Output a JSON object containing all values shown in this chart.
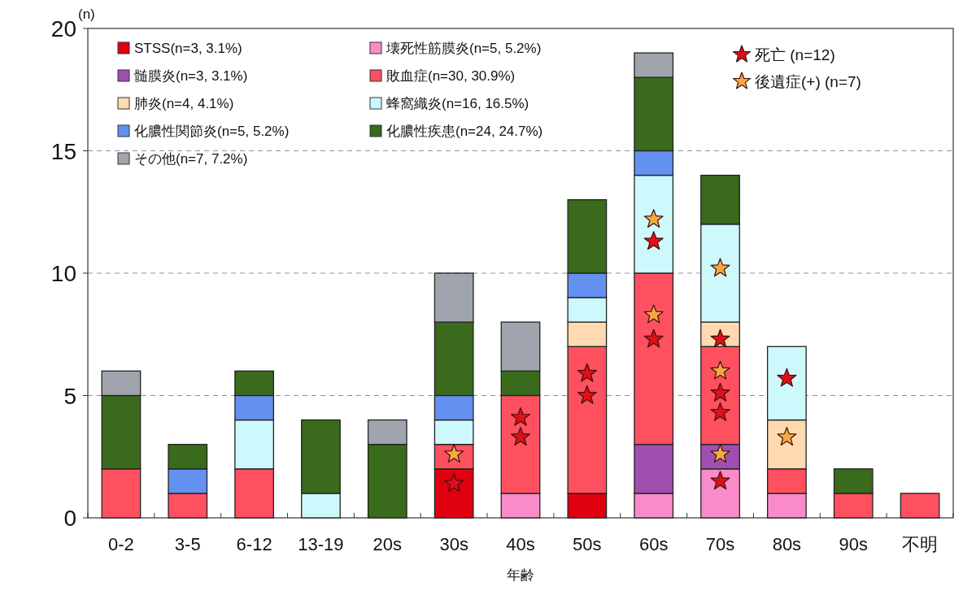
{
  "chart_data": {
    "type": "bar",
    "stacked": true,
    "xlabel": "年齢",
    "ylabel": "(n)",
    "categories": [
      "0-2",
      "3-5",
      "6-12",
      "13-19",
      "20s",
      "30s",
      "40s",
      "50s",
      "60s",
      "70s",
      "80s",
      "90s",
      "不明"
    ],
    "ylim": [
      0,
      20
    ],
    "yticks": [
      0,
      5,
      10,
      15,
      20
    ],
    "grid": "y",
    "legend": "top",
    "series": [
      {
        "name": "STSS(n=3, 3.1%)",
        "color": "#e00010",
        "values": [
          0,
          0,
          0,
          0,
          0,
          2,
          0,
          1,
          0,
          0,
          0,
          0,
          0
        ]
      },
      {
        "name": "壊死性筋膜炎(n=5, 5.2%)",
        "color": "#f98cc8",
        "values": [
          0,
          0,
          0,
          0,
          0,
          0,
          1,
          0,
          1,
          2,
          1,
          0,
          0
        ]
      },
      {
        "name": "髄膜炎(n=3, 3.1%)",
        "color": "#a04fb0",
        "values": [
          0,
          0,
          0,
          0,
          0,
          0,
          0,
          0,
          2,
          1,
          0,
          0,
          0
        ]
      },
      {
        "name": "敗血症(n=30, 30.9%)",
        "color": "#ff5060",
        "values": [
          2,
          1,
          2,
          0,
          0,
          1,
          4,
          6,
          7,
          4,
          1,
          1,
          1
        ]
      },
      {
        "name": "肺炎(n=4, 4.1%)",
        "color": "#ffdab0",
        "values": [
          0,
          0,
          0,
          0,
          0,
          0,
          0,
          1,
          0,
          1,
          2,
          0,
          0
        ]
      },
      {
        "name": "蜂窩織炎(n=16, 16.5%)",
        "color": "#cdf8fc",
        "values": [
          0,
          0,
          2,
          1,
          0,
          1,
          0,
          1,
          4,
          4,
          3,
          0,
          0
        ]
      },
      {
        "name": "化膿性関節炎(n=5, 5.2%)",
        "color": "#6490f0",
        "values": [
          0,
          1,
          1,
          0,
          0,
          1,
          0,
          1,
          1,
          0,
          0,
          0,
          0
        ]
      },
      {
        "name": "化膿性疾患(n=24, 24.7%)",
        "color": "#3a6a1c",
        "values": [
          3,
          1,
          1,
          3,
          3,
          3,
          1,
          3,
          3,
          2,
          0,
          1,
          0
        ]
      },
      {
        "name": "その他(n=7, 7.2%)",
        "color": "#a0a4ac",
        "values": [
          1,
          0,
          0,
          0,
          1,
          2,
          2,
          0,
          1,
          0,
          0,
          0,
          0
        ]
      },
      {
        "name": "死亡 (n=12)",
        "type": "scatter",
        "marker": "star",
        "color": "#e01018",
        "x": [
          "30s",
          "40s",
          "40s",
          "50s",
          "50s",
          "60s",
          "60s",
          "70s",
          "70s",
          "70s",
          "70s",
          "80s"
        ],
        "values": [
          1.4,
          3.3,
          4.1,
          5.0,
          5.9,
          7.3,
          11.3,
          1.5,
          4.3,
          5.1,
          7.3,
          5.7
        ]
      },
      {
        "name": "後遺症(+) (n=7)",
        "type": "scatter",
        "marker": "star",
        "color": "#f8a840",
        "x": [
          "30s",
          "60s",
          "60s",
          "70s",
          "70s",
          "70s",
          "80s"
        ],
        "values": [
          2.6,
          8.3,
          12.2,
          2.6,
          6.0,
          10.2,
          3.3
        ]
      }
    ]
  }
}
